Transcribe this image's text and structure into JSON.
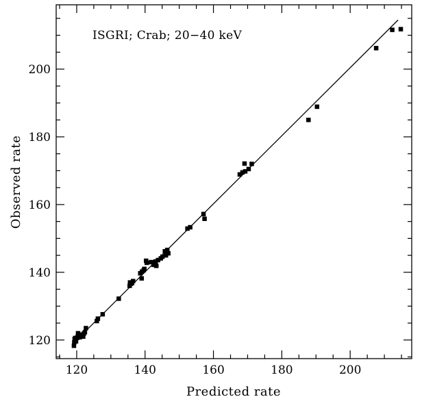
{
  "chart_data": {
    "type": "scatter",
    "title": "",
    "annotation": "ISGRI; Crab; 20−40 keV",
    "xlabel": "Predicted rate",
    "ylabel": "Observed rate",
    "xlim": [
      114,
      218
    ],
    "ylim": [
      114.5,
      219
    ],
    "x_ticks": [
      "120",
      "140",
      "160",
      "180",
      "200"
    ],
    "y_ticks": [
      "120",
      "140",
      "160",
      "180",
      "200"
    ],
    "grid": false,
    "legend": "none",
    "fit_line": {
      "x": [
        119,
        214
      ],
      "y": [
        119,
        214.5
      ]
    },
    "series": [
      {
        "points": [
          [
            119.2,
            118.3
          ],
          [
            119.3,
            119.3
          ],
          [
            119.4,
            120.3
          ],
          [
            119.6,
            120.6
          ],
          [
            119.8,
            119.6
          ],
          [
            120.1,
            120.6
          ],
          [
            120.3,
            121.0
          ],
          [
            120.4,
            122.0
          ],
          [
            120.6,
            121.4
          ],
          [
            120.9,
            120.8
          ],
          [
            121.3,
            121.2
          ],
          [
            121.6,
            121.6
          ],
          [
            121.9,
            121.0
          ],
          [
            122.1,
            121.9
          ],
          [
            122.4,
            122.3
          ],
          [
            122.7,
            123.5
          ],
          [
            125.9,
            125.6
          ],
          [
            126.2,
            126.3
          ],
          [
            127.6,
            127.6
          ],
          [
            132.3,
            132.2
          ],
          [
            135.5,
            136.0
          ],
          [
            135.6,
            137.0
          ],
          [
            135.8,
            136.6
          ],
          [
            136.2,
            136.8
          ],
          [
            136.5,
            137.4
          ],
          [
            138.6,
            139.7
          ],
          [
            139.0,
            138.2
          ],
          [
            139.1,
            140.2
          ],
          [
            139.6,
            140.6
          ],
          [
            139.8,
            141.0
          ],
          [
            140.3,
            143.4
          ],
          [
            140.5,
            142.8
          ],
          [
            141.8,
            143.0
          ],
          [
            142.5,
            142.2
          ],
          [
            142.8,
            142.6
          ],
          [
            143.1,
            143.2
          ],
          [
            143.3,
            141.9
          ],
          [
            143.8,
            143.6
          ],
          [
            144.6,
            144.1
          ],
          [
            145.1,
            144.6
          ],
          [
            145.8,
            146.2
          ],
          [
            146.1,
            145.0
          ],
          [
            146.5,
            146.6
          ],
          [
            146.8,
            145.6
          ],
          [
            152.4,
            152.9
          ],
          [
            153.2,
            153.3
          ],
          [
            157.1,
            157.2
          ],
          [
            157.4,
            155.8
          ],
          [
            167.7,
            168.9
          ],
          [
            168.5,
            169.5
          ],
          [
            169.1,
            172.1
          ],
          [
            169.3,
            169.8
          ],
          [
            170.3,
            170.5
          ],
          [
            171.2,
            172.0
          ],
          [
            187.8,
            185.0
          ],
          [
            190.3,
            188.9
          ],
          [
            207.6,
            206.2
          ],
          [
            212.3,
            211.6
          ],
          [
            214.8,
            211.8
          ]
        ]
      }
    ]
  }
}
